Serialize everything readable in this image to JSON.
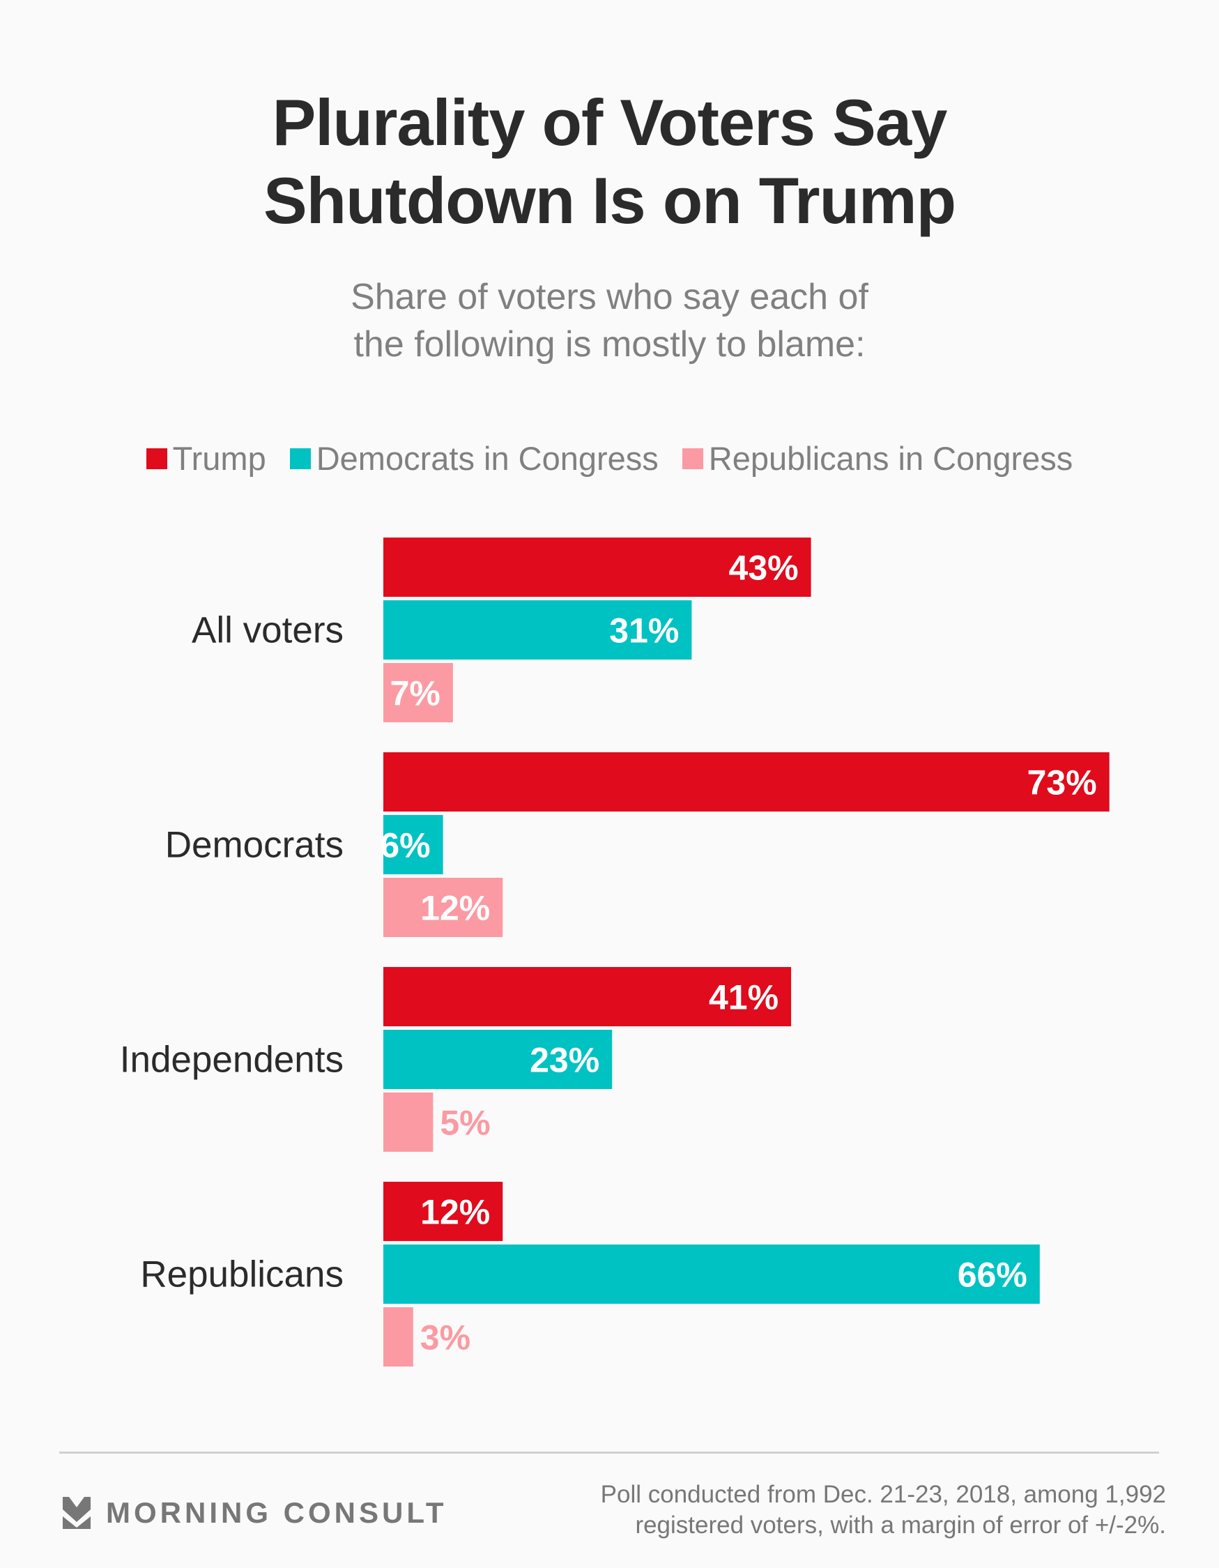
{
  "header": {
    "title_line1": "Plurality of Voters Say",
    "title_line2": "Shutdown Is on Trump",
    "subtitle_line1": "Share of voters who say each of",
    "subtitle_line2": "the following is mostly to blame:"
  },
  "legend": [
    {
      "label": "Trump",
      "color": "#e00b1c"
    },
    {
      "label": "Democrats in Congress",
      "color": "#00c2c2"
    },
    {
      "label": "Republicans in Congress",
      "color": "#fb9aa2"
    }
  ],
  "chart_data": {
    "type": "bar",
    "orientation": "horizontal",
    "title": "Plurality of Voters Say Shutdown Is on Trump",
    "subtitle": "Share of voters who say each of the following is mostly to blame:",
    "categories": [
      "All voters",
      "Democrats",
      "Independents",
      "Republicans"
    ],
    "series": [
      {
        "name": "Trump",
        "color": "#e00b1c",
        "values": [
          43,
          73,
          41,
          12
        ]
      },
      {
        "name": "Democrats in Congress",
        "color": "#00c2c2",
        "values": [
          31,
          6,
          23,
          66
        ]
      },
      {
        "name": "Republicans in Congress",
        "color": "#fb9aa2",
        "values": [
          7,
          12,
          5,
          3
        ]
      }
    ],
    "value_suffix": "%",
    "xlabel": "",
    "ylabel": "",
    "xlim": [
      0,
      73
    ],
    "grid": false,
    "legend_position": "top"
  },
  "footer": {
    "brand": "MORNING CONSULT",
    "brand_icon": "morning-consult-chevron-icon",
    "note_line1": "Poll conducted from Dec. 21-23, 2018, among 1,992",
    "note_line2": "registered voters, with a margin of error of +/-2%."
  }
}
